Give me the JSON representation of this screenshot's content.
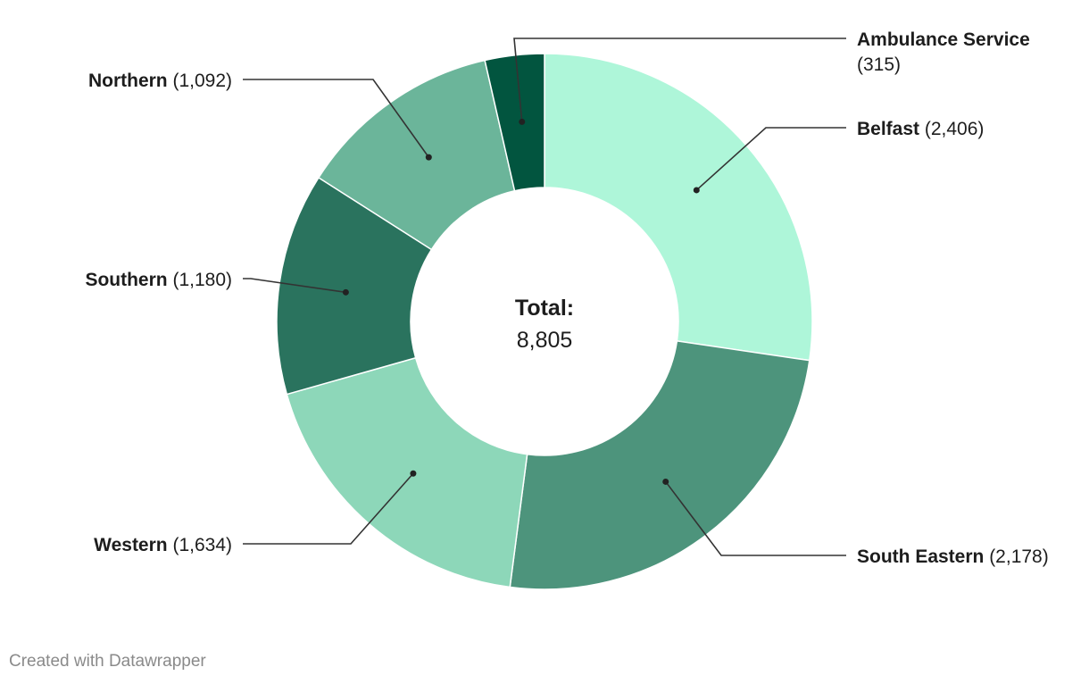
{
  "chart_data": {
    "type": "pie",
    "subtype": "donut",
    "center_label": {
      "title": "Total:",
      "value": "8,805"
    },
    "slices": [
      {
        "name": "Belfast",
        "value": 2406,
        "value_label": "(2,406)",
        "color": "#aef6d9"
      },
      {
        "name": "South Eastern",
        "value": 2178,
        "value_label": "(2,178)",
        "color": "#4d947c"
      },
      {
        "name": "Western",
        "value": 1634,
        "value_label": "(1,634)",
        "color": "#8dd7b9"
      },
      {
        "name": "Southern",
        "value": 1180,
        "value_label": "(1,180)",
        "color": "#2a735e"
      },
      {
        "name": "Northern",
        "value": 1092,
        "value_label": "(1,092)",
        "color": "#6bb59a"
      },
      {
        "name": "Ambulance Service",
        "value": 315,
        "value_label": "(315)",
        "color": "#02553f"
      }
    ]
  },
  "footer": {
    "credit": "Created with Datawrapper"
  }
}
